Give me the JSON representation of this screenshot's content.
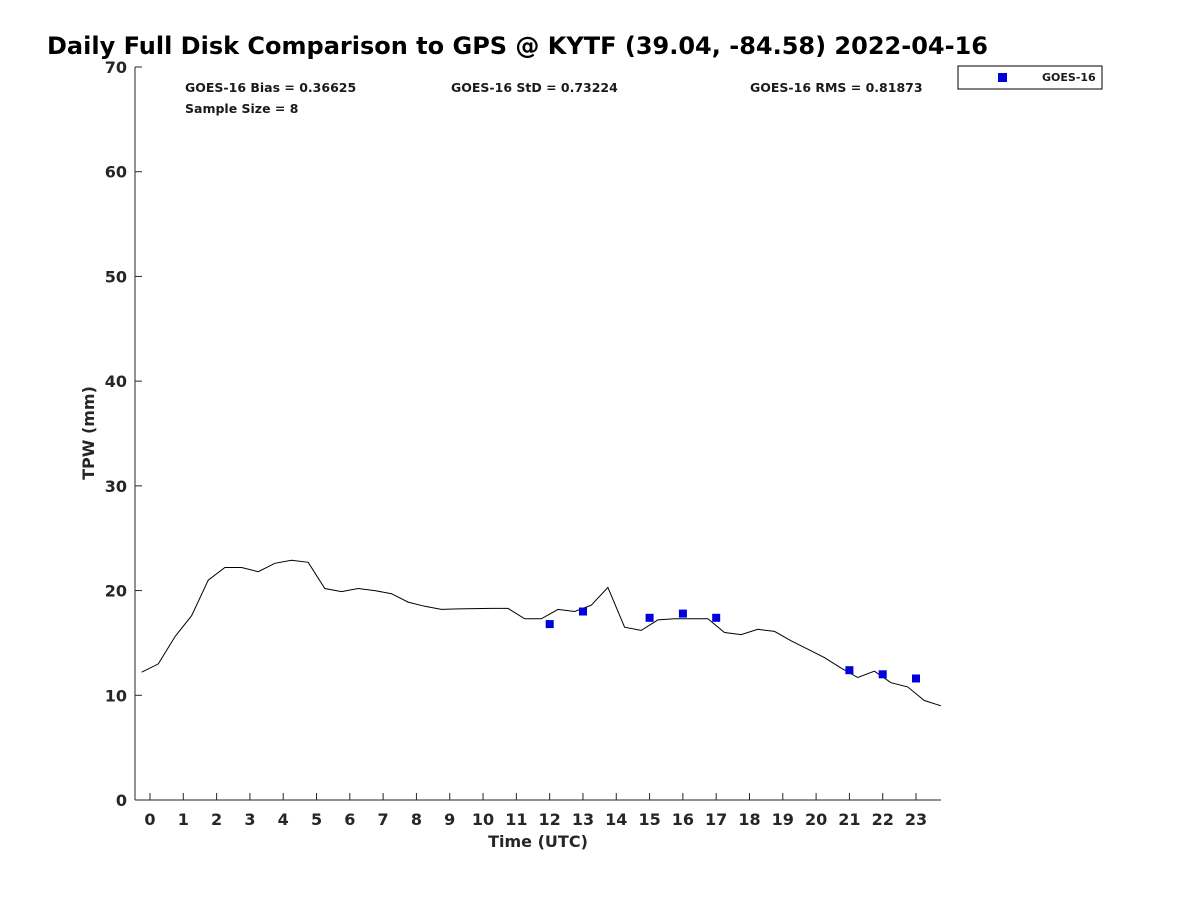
{
  "chart_data": {
    "type": "line",
    "title": "Daily Full Disk Comparison to GPS @ KYTF (39.04, -84.58) 2022-04-16",
    "xlabel": "Time (UTC)",
    "ylabel": "TPW (mm)",
    "xlim": [
      -0.45,
      23.75
    ],
    "ylim": [
      0,
      70
    ],
    "xticks": [
      0,
      1,
      2,
      3,
      4,
      5,
      6,
      7,
      8,
      9,
      10,
      11,
      12,
      13,
      14,
      15,
      16,
      17,
      18,
      19,
      20,
      21,
      22,
      23
    ],
    "yticks": [
      0,
      10,
      20,
      30,
      40,
      50,
      60,
      70
    ],
    "grid": false,
    "legend_position": "top-right",
    "stats": {
      "bias": "GOES-16 Bias = 0.36625",
      "std": "GOES-16 StD = 0.73224",
      "rms": "GOES-16 RMS = 0.81873",
      "sample_size": "Sample Size = 8"
    },
    "series": [
      {
        "kind": "line",
        "color": "#000000",
        "x": [
          -0.25,
          0.25,
          0.75,
          1.25,
          1.75,
          2.25,
          2.75,
          3.25,
          3.75,
          4.25,
          4.75,
          5.25,
          5.75,
          6.25,
          6.75,
          7.25,
          7.75,
          8.25,
          8.75,
          9.25,
          9.75,
          10.25,
          10.75,
          11.25,
          11.75,
          12.25,
          12.75,
          13.25,
          13.75,
          14.25,
          14.75,
          15.25,
          15.75,
          16.25,
          16.75,
          17.25,
          17.75,
          18.25,
          18.75,
          19.25,
          19.75,
          20.25,
          20.75,
          21.25,
          21.75,
          22.25,
          22.75,
          23.25,
          23.75
        ],
        "y": [
          12.2,
          13.0,
          15.6,
          17.6,
          21.0,
          22.2,
          22.2,
          21.8,
          22.6,
          22.9,
          22.7,
          20.2,
          19.9,
          20.2,
          20.0,
          19.7,
          18.9,
          18.5,
          18.2,
          18.25,
          18.28,
          18.3,
          18.3,
          17.3,
          17.3,
          18.2,
          18.0,
          18.6,
          20.3,
          16.5,
          16.2,
          17.2,
          17.3,
          17.3,
          17.3,
          16.0,
          15.8,
          16.3,
          16.1,
          15.2,
          14.4,
          13.6,
          12.6,
          11.7,
          12.3,
          11.2,
          10.8,
          9.5,
          9.0
        ]
      },
      {
        "kind": "scatter",
        "name": "GOES-16",
        "color": "#0000dd",
        "x": [
          12,
          13,
          15,
          16,
          17,
          21,
          22,
          23
        ],
        "y": [
          16.8,
          18.0,
          17.4,
          17.8,
          17.4,
          12.4,
          12.0,
          11.6
        ]
      }
    ]
  }
}
